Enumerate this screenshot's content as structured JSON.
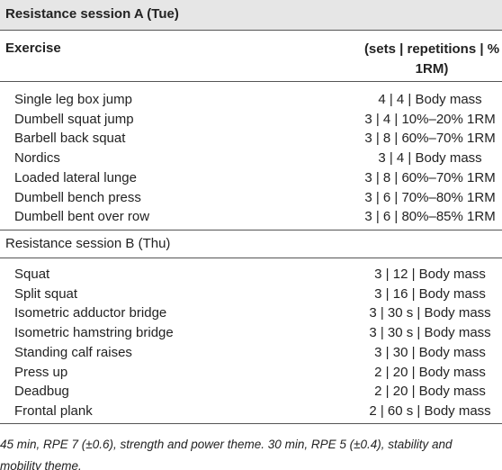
{
  "title": "Resistance session A (Tue)",
  "header": {
    "exercise": "Exercise",
    "prescription": "(sets | repetitions | % 1RM)"
  },
  "sections": [
    {
      "rows": [
        [
          "Single leg box jump",
          "4 | 4 | Body mass"
        ],
        [
          "Dumbell squat jump",
          "3 | 4 | 10%–20% 1RM"
        ],
        [
          "Barbell back squat",
          "3 | 8 | 60%–70% 1RM"
        ],
        [
          "Nordics",
          "3 | 4 | Body mass"
        ],
        [
          "Loaded lateral lunge",
          "3 | 8 | 60%–70% 1RM"
        ],
        [
          "Dumbell bench press",
          "3 | 6 | 70%–80% 1RM"
        ],
        [
          "Dumbell bent over row",
          "3 | 6 | 80%–85% 1RM"
        ]
      ]
    },
    {
      "label": "Resistance session B (Thu)",
      "rows": [
        [
          "Squat",
          "3 | 12 | Body mass"
        ],
        [
          "Split squat",
          "3 | 16 | Body mass"
        ],
        [
          "Isometric adductor bridge",
          "3 | 30 s | Body mass"
        ],
        [
          "Isometric hamstring bridge",
          "3 | 30 s | Body mass"
        ],
        [
          "Standing calf raises",
          "3 | 30 | Body mass"
        ],
        [
          "Press up",
          "2 | 20 | Body mass"
        ],
        [
          "Deadbug",
          "2 | 20 | Body mass"
        ],
        [
          "Frontal plank",
          "2 | 60 s | Body mass"
        ]
      ]
    }
  ],
  "footnote": "45 min, RPE 7 (±0.6), strength and power theme. 30 min, RPE 5 (±0.4), stability and mobility theme."
}
